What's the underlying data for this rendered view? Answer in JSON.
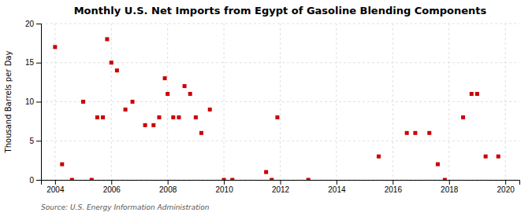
{
  "chart_data": {
    "type": "scatter",
    "title": "Monthly U.S. Net Imports from Egypt of Gasoline Blending Components",
    "ylabel": "Thousand Barrels per Day",
    "annotations": [
      "Source: U.S. Energy Information Administration"
    ],
    "x": [
      2004.0,
      2004.25,
      2004.6,
      2005.0,
      2005.3,
      2005.5,
      2005.7,
      2005.85,
      2006.0,
      2006.2,
      2006.5,
      2006.75,
      2007.2,
      2007.5,
      2007.7,
      2007.9,
      2008.0,
      2008.2,
      2008.4,
      2008.6,
      2008.8,
      2009.0,
      2009.2,
      2009.5,
      2010.0,
      2010.3,
      2011.5,
      2011.7,
      2011.9,
      2013.0,
      2015.5,
      2016.5,
      2016.8,
      2017.3,
      2017.6,
      2017.85,
      2018.5,
      2018.8,
      2019.0,
      2019.3,
      2019.75
    ],
    "values": [
      17,
      2,
      0,
      10,
      0,
      8,
      8,
      18,
      15,
      14,
      9,
      10,
      7,
      7,
      8,
      13,
      11,
      8,
      8,
      12,
      11,
      8,
      6,
      9,
      0,
      0,
      1,
      0,
      8,
      0,
      3,
      6,
      6,
      6,
      2,
      0,
      8,
      11,
      11,
      3,
      3
    ],
    "color": "#cc0000",
    "marker": "square",
    "xlim": [
      2003.5,
      2020.5
    ],
    "ylim": [
      0,
      20
    ],
    "xticks": [
      2004,
      2006,
      2008,
      2010,
      2012,
      2014,
      2016,
      2018,
      2020
    ],
    "yticks": [
      0,
      5,
      10,
      15,
      20
    ],
    "grid": true
  }
}
